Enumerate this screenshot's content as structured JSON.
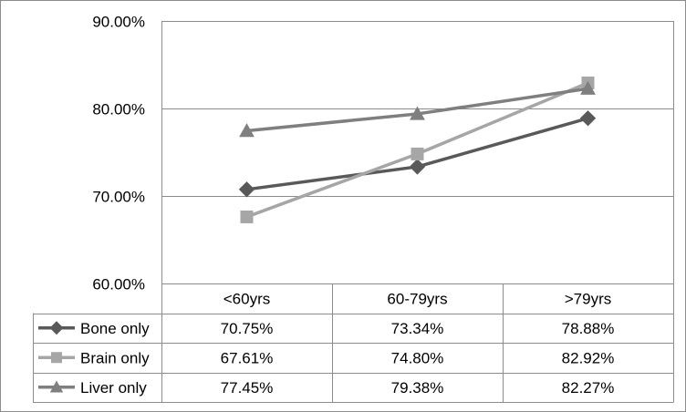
{
  "chart_data": {
    "type": "line",
    "title": "",
    "xlabel": "",
    "ylabel": "",
    "categories": [
      "<60yrs",
      "60-79yrs",
      ">79yrs"
    ],
    "ylim": [
      60,
      90
    ],
    "yticks": [
      60,
      70,
      80,
      90
    ],
    "ytick_labels": [
      "60.00%",
      "70.00%",
      "80.00%",
      "90.00%"
    ],
    "grid": true,
    "legend": "data-table",
    "series": [
      {
        "name": "Bone only",
        "values": [
          70.75,
          73.34,
          78.88
        ],
        "labels": [
          "70.75%",
          "73.34%",
          "78.88%"
        ],
        "color": "#595959",
        "marker": "diamond"
      },
      {
        "name": "Brain only",
        "values": [
          67.61,
          74.8,
          82.92
        ],
        "labels": [
          "67.61%",
          "74.80%",
          "82.92%"
        ],
        "color": "#a6a6a6",
        "marker": "square"
      },
      {
        "name": "Liver only",
        "values": [
          77.45,
          79.38,
          82.27
        ],
        "labels": [
          "77.45%",
          "79.38%",
          "82.27%"
        ],
        "color": "#7f7f7f",
        "marker": "triangle"
      }
    ]
  }
}
